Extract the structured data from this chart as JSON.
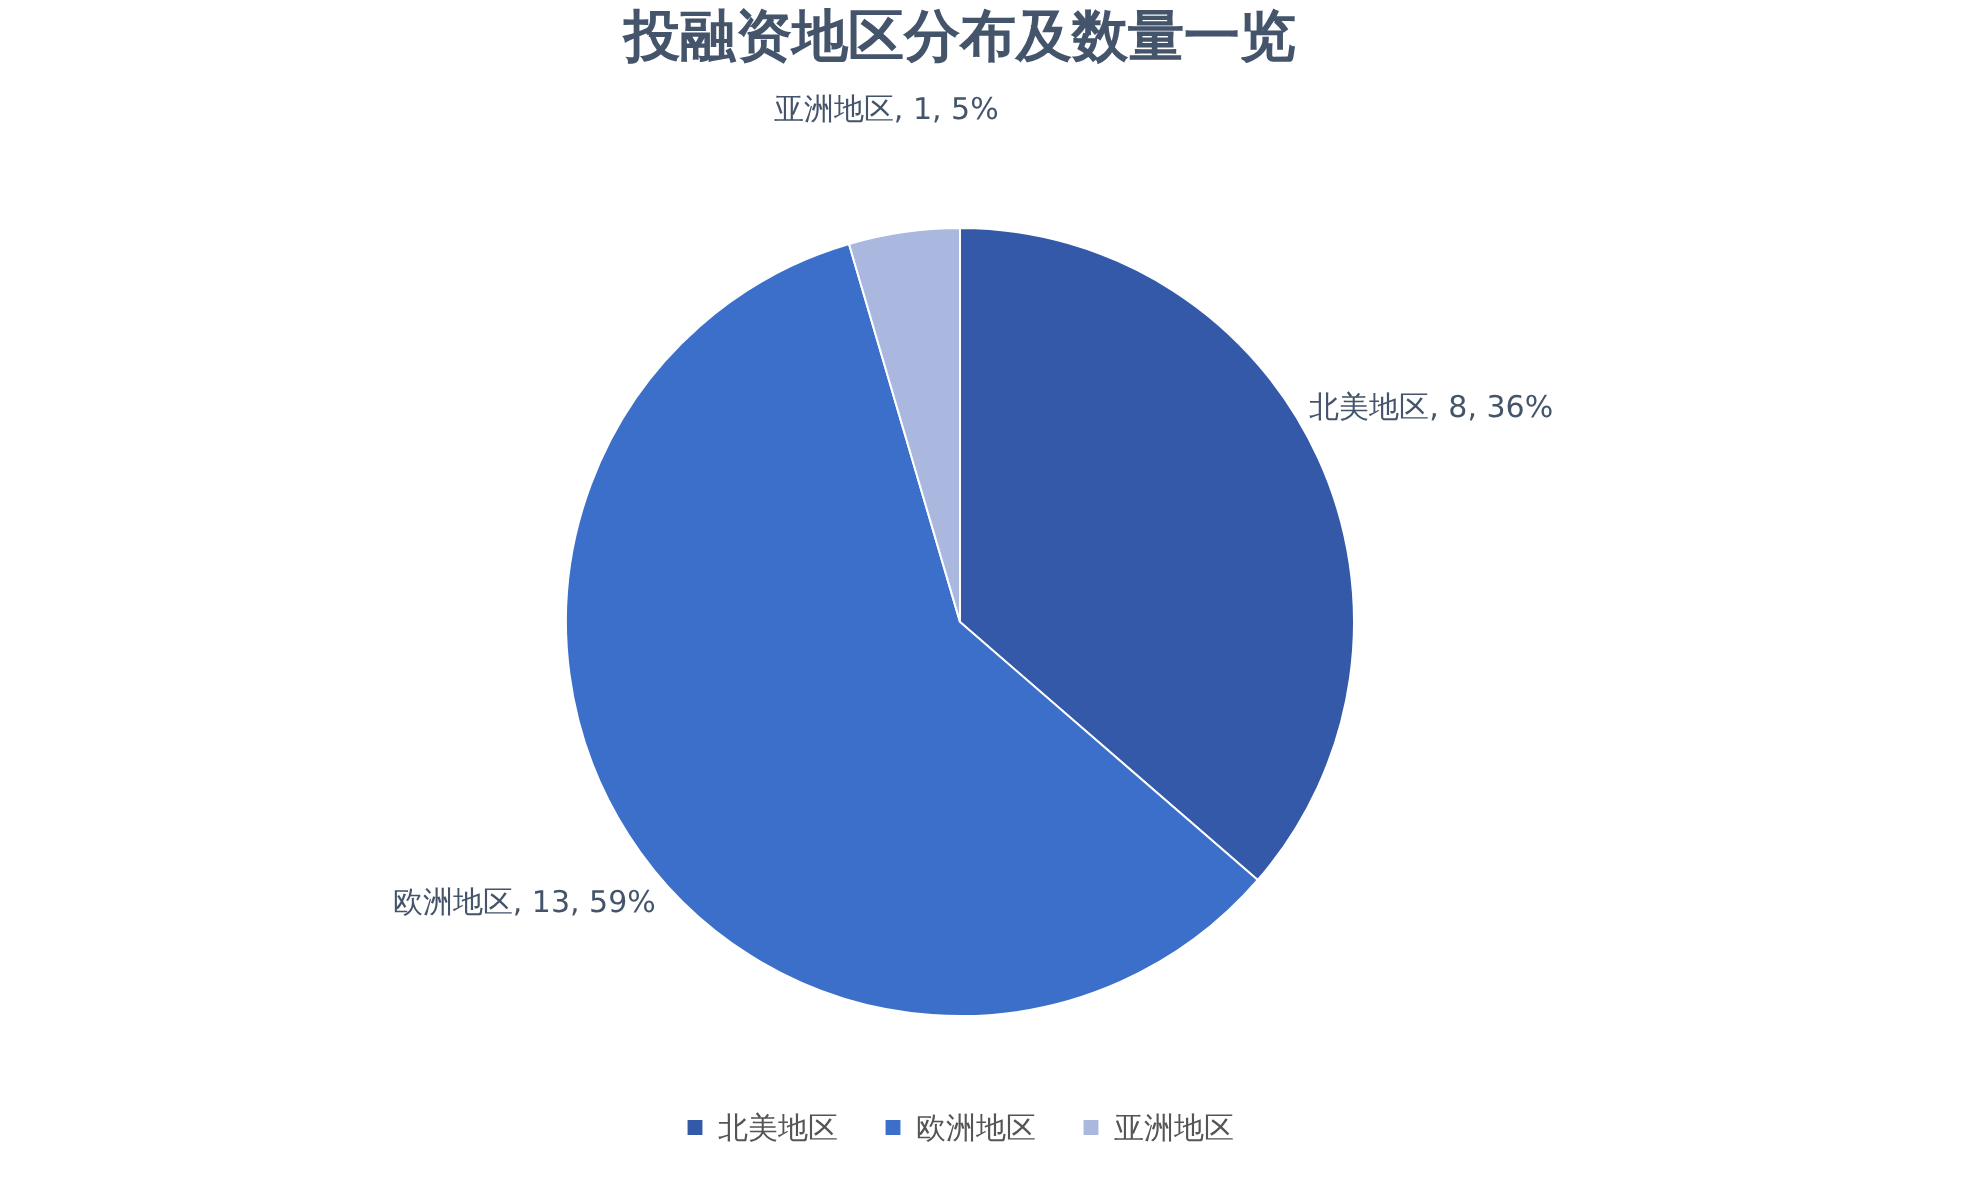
{
  "chart_data": {
    "type": "pie",
    "title": "投融资地区分布及数量一览",
    "categories": [
      "北美地区",
      "欧洲地区",
      "亚洲地区"
    ],
    "values": [
      8,
      13,
      1
    ],
    "colors": [
      "#3459a8",
      "#3b6fc9",
      "#aab8e0"
    ],
    "value_labels": [
      "北美地区, 8, 36%",
      "欧洲地区, 13, 59%",
      "亚洲地区, 1, 5%"
    ],
    "legend": "bottom"
  }
}
